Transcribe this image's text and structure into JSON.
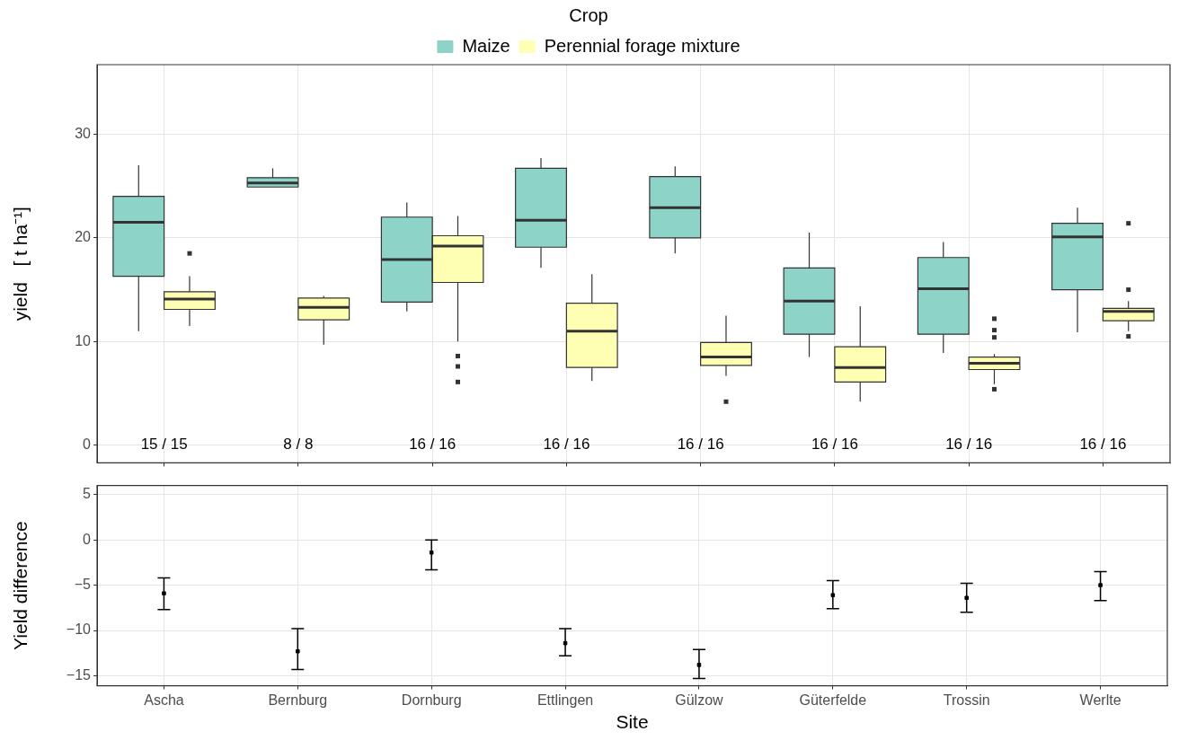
{
  "chart_data": [
    {
      "type": "box",
      "ylabel": "yield   [ t ha⁻¹]",
      "legend_title": "Crop",
      "legend": "top",
      "tick_labels": "y",
      "grid": true,
      "ylim": [
        -1.7,
        36.7
      ],
      "yticks": [
        0,
        10,
        20,
        30
      ],
      "categories": [
        null,
        null,
        null,
        null,
        null,
        null,
        null,
        null
      ],
      "series": [
        {
          "name": "Maize",
          "color": "#8dd3c7",
          "boxes": [
            {
              "low": 11.0,
              "q1": 16.3,
              "median": 21.5,
              "q3": 24.0,
              "high": 27.0
            },
            {
              "low": 24.9,
              "q1": 24.9,
              "median": 25.3,
              "q3": 25.8,
              "high": 26.7
            },
            {
              "low": 12.9,
              "q1": 13.8,
              "median": 17.9,
              "q3": 22.0,
              "high": 23.4
            },
            {
              "low": 17.1,
              "q1": 19.1,
              "median": 21.7,
              "q3": 26.7,
              "high": 27.7
            },
            {
              "low": 18.5,
              "q1": 20.0,
              "median": 22.9,
              "q3": 25.9,
              "high": 26.9
            },
            {
              "low": 8.5,
              "q1": 10.7,
              "median": 13.9,
              "q3": 17.1,
              "high": 20.5
            },
            {
              "low": 8.9,
              "q1": 10.7,
              "median": 15.1,
              "q3": 18.1,
              "high": 19.6
            },
            {
              "low": 10.9,
              "q1": 15.0,
              "median": 20.1,
              "q3": 21.4,
              "high": 22.9
            }
          ]
        },
        {
          "name": "Perennial forage mixture",
          "color": "#ffffb3",
          "boxes": [
            {
              "low": 11.5,
              "q1": 13.1,
              "median": 14.1,
              "q3": 14.8,
              "high": 16.3,
              "outliers": [
                18.5
              ]
            },
            {
              "low": 9.7,
              "q1": 12.1,
              "median": 13.3,
              "q3": 14.2,
              "high": 14.4
            },
            {
              "low": 10.0,
              "q1": 15.7,
              "median": 19.2,
              "q3": 20.2,
              "high": 22.1,
              "outliers": [
                8.6,
                7.6,
                6.1
              ]
            },
            {
              "low": 6.2,
              "q1": 7.5,
              "median": 11.0,
              "q3": 13.7,
              "high": 16.5
            },
            {
              "low": 6.7,
              "q1": 7.7,
              "median": 8.5,
              "q3": 9.9,
              "high": 12.5,
              "outliers": [
                4.2
              ]
            },
            {
              "low": 4.2,
              "q1": 6.1,
              "median": 7.5,
              "q3": 9.5,
              "high": 13.4
            },
            {
              "low": 5.9,
              "q1": 7.3,
              "median": 7.9,
              "q3": 8.5,
              "high": 8.8,
              "outliers": [
                12.2,
                11.1,
                10.4,
                5.4
              ]
            },
            {
              "low": 11.0,
              "q1": 12.0,
              "median": 12.9,
              "q3": 13.2,
              "high": 13.9,
              "outliers": [
                21.4,
                15.0,
                10.5
              ]
            }
          ]
        }
      ],
      "annotations": [
        "15 / 15",
        "8 / 8",
        "16 / 16",
        "16 / 16",
        "16 / 16",
        "16 / 16",
        "16 / 16",
        "16 / 16"
      ]
    },
    {
      "type": "scatter",
      "xlabel": "Site",
      "ylabel": "Yield difference",
      "grid": true,
      "marker": "square",
      "ylim": [
        -16.1,
        6
      ],
      "yticks": [
        5,
        0,
        -5,
        -10,
        -15
      ],
      "categories": [
        "Ascha",
        "Bernburg",
        "Dornburg",
        "Ettlingen",
        "Gülzow",
        "Güterfelde",
        "Trossin",
        "Werlte"
      ],
      "series": [
        {
          "color": "#000000",
          "values": [
            -5.9,
            -12.3,
            -1.4,
            -11.4,
            -13.8,
            -6.1,
            -6.4,
            -5.0
          ],
          "errors": [
            [
              -7.7,
              -4.2
            ],
            [
              -14.3,
              -9.8
            ],
            [
              -3.3,
              0
            ],
            [
              -12.8,
              -9.8
            ],
            [
              -15.3,
              -12.1
            ],
            [
              -7.6,
              -4.5
            ],
            [
              -8.0,
              -4.8
            ],
            [
              -6.7,
              -3.5
            ]
          ]
        }
      ]
    }
  ]
}
